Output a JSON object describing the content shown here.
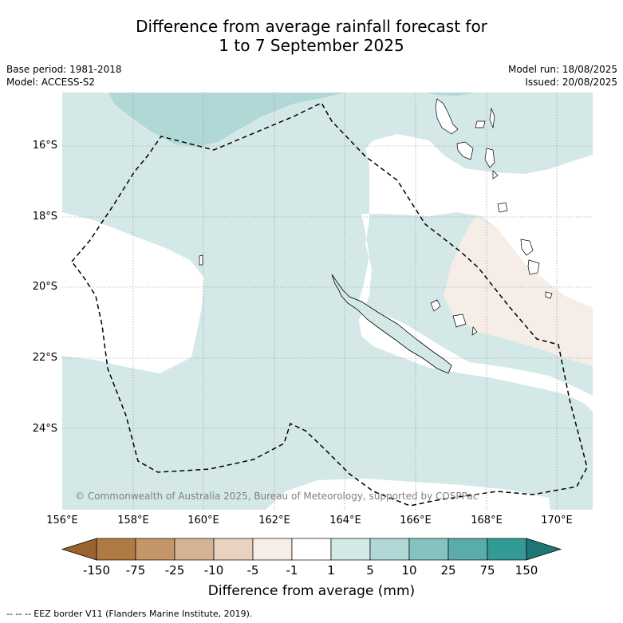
{
  "title": {
    "line1": "Difference from average rainfall forecast for",
    "line2": "1 to 7 September 2025"
  },
  "meta_left": {
    "base_period": "Base period: 1981-2018",
    "model": "Model: ACCESS-S2"
  },
  "meta_right": {
    "model_run": "Model run: 18/08/2025",
    "issued": "Issued: 20/08/2025"
  },
  "map": {
    "lat_ticks": [
      "16°S",
      "18°S",
      "20°S",
      "22°S",
      "24°S"
    ],
    "lon_ticks": [
      "156°E",
      "158°E",
      "160°E",
      "162°E",
      "164°E",
      "166°E",
      "168°E",
      "170°E"
    ],
    "copyright": "© Commonwealth of Australia 2025, Bureau of Meteorology, supported by COSPPac",
    "fill_colors": {
      "near_normal": "#ffffff",
      "wet_1_5": "#d4e9e7",
      "wet_5_10": "#b0d8d7",
      "dry_minus5_minus1": "#f5ede6",
      "eez_line": "#000000"
    }
  },
  "colorbar": {
    "labels": [
      "-150",
      "-75",
      "-25",
      "-10",
      "-5",
      "-1",
      "1",
      "5",
      "10",
      "25",
      "75",
      "150"
    ],
    "colors": [
      "#9a6330",
      "#b07a43",
      "#c49566",
      "#d6b394",
      "#e8d3c0",
      "#f5ede6",
      "#ffffff",
      "#d4e9e7",
      "#b0d8d7",
      "#86c2c0",
      "#5aacaa",
      "#339a96",
      "#1f7774"
    ],
    "title": "Difference from average (mm)"
  },
  "footnote": "-- -- -- EEZ border V11 (Flanders Marine Institute, 2019)."
}
